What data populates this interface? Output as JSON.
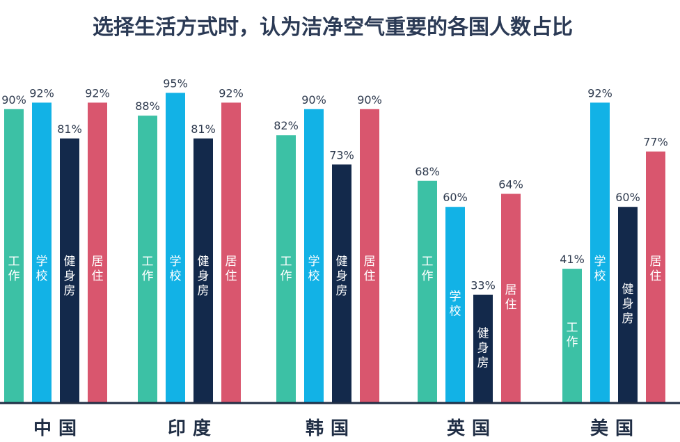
{
  "chart_data": {
    "type": "bar",
    "title": "选择生活方式时，认为洁净空气重要的各国人数占比",
    "categories": [
      "中国",
      "印度",
      "韩国",
      "英国",
      "美国"
    ],
    "series": [
      {
        "name": "工作",
        "color": "#3cc1a5",
        "values": [
          90,
          88,
          82,
          68,
          41
        ]
      },
      {
        "name": "学校",
        "color": "#12b2e6",
        "values": [
          92,
          95,
          90,
          60,
          92
        ]
      },
      {
        "name": "健身房",
        "color": "#13294b",
        "values": [
          81,
          81,
          73,
          33,
          60
        ]
      },
      {
        "name": "居住",
        "color": "#d9566e",
        "values": [
          92,
          92,
          90,
          64,
          77
        ]
      }
    ],
    "value_suffix": "%",
    "ylim": [
      0,
      100
    ],
    "grid": false,
    "legend": "none"
  }
}
